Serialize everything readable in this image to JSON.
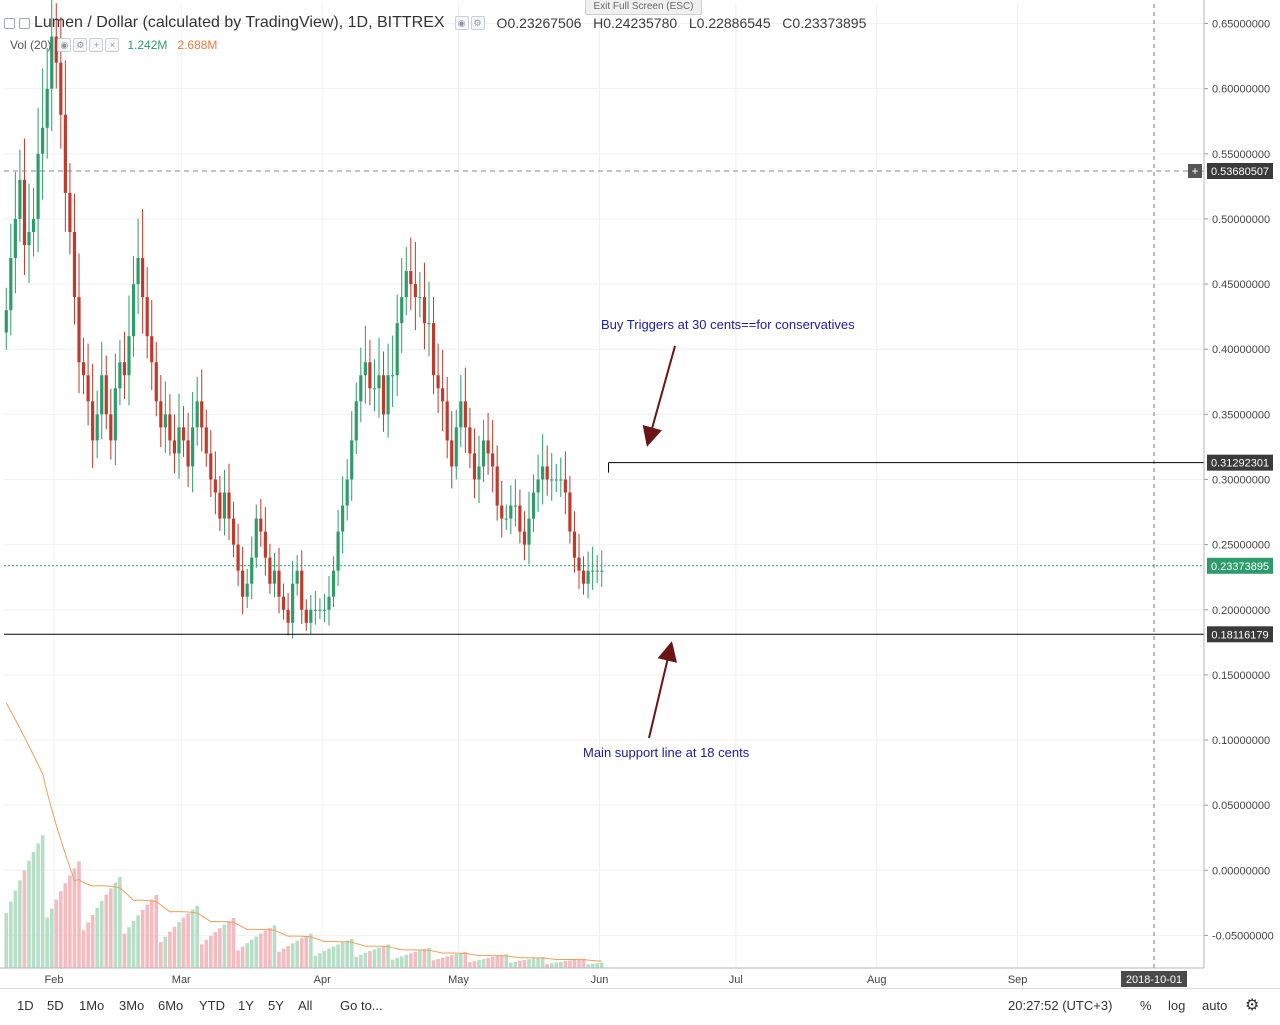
{
  "header": {
    "title": "Lumen / Dollar (calculated by TradingView), 1D, BITTREX",
    "ohlc": {
      "o_label": "O",
      "o": "0.23267506",
      "h_label": "H",
      "h": "0.24235780",
      "l_label": "L",
      "l": "0.22886545",
      "c_label": "C",
      "c": "0.23373895"
    },
    "volume_label": "Vol (20)",
    "volume_value": "1.242M",
    "volume_ma": "2.688M",
    "exit_fullscreen": "Exit Full Screen (ESC)"
  },
  "bottom_toolbar": {
    "ranges": [
      "1D",
      "5D",
      "1Mo",
      "3Mo",
      "6Mo",
      "YTD",
      "1Y",
      "5Y",
      "All"
    ],
    "goto": "Go to...",
    "clock": "20:27:52 (UTC+3)",
    "percent": "%",
    "log": "log",
    "auto": "auto",
    "settings_icon": "gear-icon"
  },
  "colors": {
    "up": "#2e9c6a",
    "down": "#c0392b",
    "up_body": "#2e9c6a",
    "down_body": "#c0392b",
    "volume_up": "#b7dfc8",
    "volume_down": "#f4bcc0",
    "volume_ma": "#f0a05a",
    "annotation_text": "#1a1aa6",
    "arrow": "#6b1414",
    "price_line": "#2e9c6a"
  },
  "chart_data": {
    "type": "candlestick",
    "y_axis": {
      "min": -0.075,
      "max": 0.665,
      "ticks": [
        "0.65000000",
        "0.60000000",
        "0.55000000",
        "0.50000000",
        "0.45000000",
        "0.40000000",
        "0.35000000",
        "0.30000000",
        "0.25000000",
        "0.20000000",
        "0.15000000",
        "0.10000000",
        "0.05000000",
        "0.00000000",
        "-0.05000000"
      ]
    },
    "x_axis": {
      "start": "2018-01-21",
      "end": "2018-10-12",
      "ticks": [
        {
          "label": "Feb",
          "date": "2018-02-01"
        },
        {
          "label": "Mar",
          "date": "2018-03-01"
        },
        {
          "label": "Apr",
          "date": "2018-04-01"
        },
        {
          "label": "May",
          "date": "2018-05-01"
        },
        {
          "label": "Jun",
          "date": "2018-06-01"
        },
        {
          "label": "Jul",
          "date": "2018-07-01"
        },
        {
          "label": "Aug",
          "date": "2018-08-01"
        },
        {
          "label": "Sep",
          "date": "2018-09-01"
        }
      ],
      "highlight": {
        "label": "2018-10-01",
        "date": "2018-10-01"
      }
    },
    "candles": {
      "start_date": "2018-01-21",
      "close": [
        0.43,
        0.47,
        0.5,
        0.53,
        0.48,
        0.49,
        0.5,
        0.55,
        0.57,
        0.6,
        0.64,
        0.62,
        0.58,
        0.52,
        0.49,
        0.44,
        0.39,
        0.38,
        0.36,
        0.33,
        0.35,
        0.38,
        0.35,
        0.33,
        0.37,
        0.39,
        0.38,
        0.41,
        0.45,
        0.47,
        0.44,
        0.41,
        0.39,
        0.36,
        0.34,
        0.35,
        0.33,
        0.32,
        0.34,
        0.33,
        0.31,
        0.34,
        0.36,
        0.34,
        0.32,
        0.3,
        0.29,
        0.27,
        0.29,
        0.27,
        0.25,
        0.23,
        0.21,
        0.22,
        0.24,
        0.27,
        0.26,
        0.24,
        0.22,
        0.23,
        0.21,
        0.2,
        0.19,
        0.22,
        0.23,
        0.2,
        0.19,
        0.2,
        0.2,
        0.2,
        0.2,
        0.21,
        0.23,
        0.26,
        0.28,
        0.3,
        0.33,
        0.36,
        0.38,
        0.39,
        0.37,
        0.37,
        0.38,
        0.35,
        0.38,
        0.38,
        0.42,
        0.44,
        0.46,
        0.45,
        0.44,
        0.44,
        0.42,
        0.42,
        0.38,
        0.37,
        0.36,
        0.33,
        0.31,
        0.34,
        0.36,
        0.34,
        0.32,
        0.3,
        0.31,
        0.33,
        0.32,
        0.31,
        0.28,
        0.27,
        0.27,
        0.28,
        0.28,
        0.26,
        0.25,
        0.27,
        0.29,
        0.3,
        0.31,
        0.3,
        0.3,
        0.3,
        0.3,
        0.29,
        0.26,
        0.24,
        0.23,
        0.22,
        0.23,
        0.23,
        0.23,
        0.23
      ],
      "note": "daily closes; open = previous close"
    },
    "volume": {
      "ma_label": "Vol (20)"
    },
    "horizontal_lines": [
      {
        "label": "0.53680507",
        "value": 0.5368,
        "style": "dashed"
      },
      {
        "label": "0.31292301",
        "value": 0.31292,
        "style": "solid"
      },
      {
        "label": "0.18116179",
        "value": 0.18116,
        "style": "solid"
      }
    ],
    "last_price": {
      "label": "0.23373895",
      "value": 0.23374
    },
    "annotations": [
      {
        "text": "Buy Triggers at 30 cents==for conservatives"
      },
      {
        "text": "Main support line at 18 cents"
      }
    ]
  }
}
